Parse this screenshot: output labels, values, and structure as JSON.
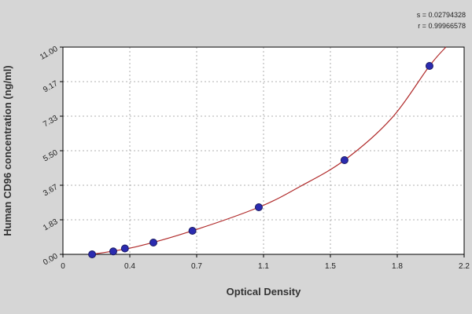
{
  "chart_data": {
    "type": "scatter",
    "x_label": "Optical Density",
    "y_label": "Human CD96 concentration (ng/ml)",
    "annotations": [
      "s = 0.02794328",
      "r = 0.99966578"
    ],
    "xlim": [
      0,
      2.2
    ],
    "ylim": [
      0,
      11
    ],
    "xticks": [
      0,
      {
        "value": 0.3667,
        "label": "0.4"
      },
      {
        "value": 0.7333,
        "label": "0.7"
      },
      1.1,
      {
        "value": 1.4667,
        "label": "1.5"
      },
      {
        "value": 1.8333,
        "label": "1.8"
      },
      2.2
    ],
    "yticks": [
      {
        "value": 0,
        "label": "0.00"
      },
      {
        "value": 1.833,
        "label": "1.83"
      },
      {
        "value": 3.667,
        "label": "3.67"
      },
      {
        "value": 5.5,
        "label": "5.50"
      },
      {
        "value": 7.333,
        "label": "7.33"
      },
      {
        "value": 9.167,
        "label": "9.17"
      },
      {
        "value": 11,
        "label": "11.00"
      }
    ],
    "grid": true,
    "series": [
      {
        "type": "line",
        "color": "#b02a2a",
        "x": [
          0.16,
          0.4,
          0.7,
          1.074,
          1.3,
          1.544,
          1.8,
          2.01,
          2.1
        ],
        "values": [
          0,
          0.4,
          1.22,
          2.5,
          3.6,
          5.0,
          7.2,
          10,
          11
        ]
      },
      {
        "type": "scatter",
        "color": "#2b2bb0",
        "x": [
          0.16,
          0.276,
          0.34,
          0.496,
          0.71,
          1.074,
          1.544,
          2.01
        ],
        "values": [
          0,
          0.156,
          0.312,
          0.625,
          1.25,
          2.5,
          5,
          10
        ]
      }
    ]
  }
}
